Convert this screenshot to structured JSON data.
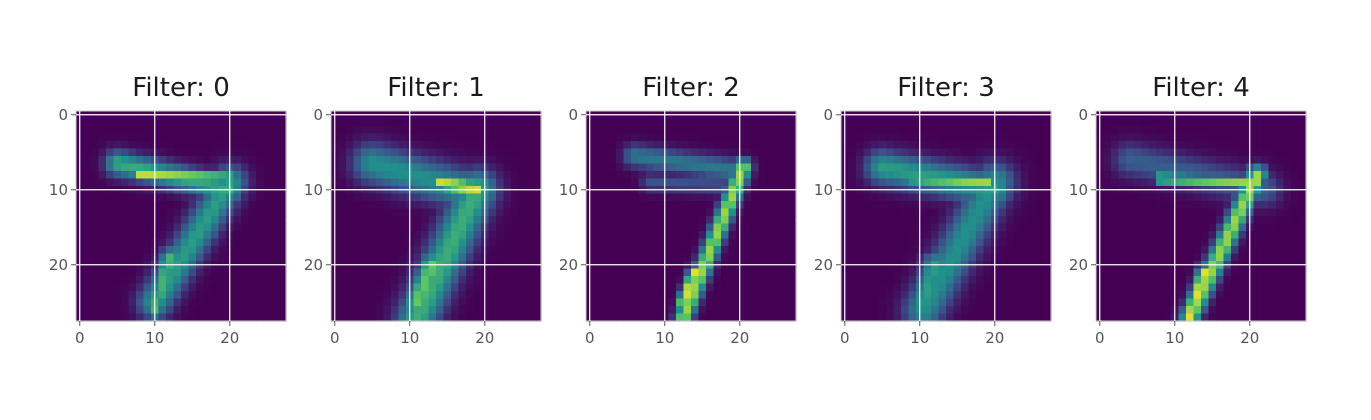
{
  "chart_data": {
    "type": "heatmap",
    "colormap": "viridis",
    "colors": [
      "#440154",
      "#3b528b",
      "#21918c",
      "#5ec962",
      "#fde725"
    ],
    "grid": true,
    "image_size": [
      28,
      28
    ],
    "panels": [
      {
        "title": "Filter: 0",
        "xticks": [
          "0",
          "10",
          "20"
        ],
        "yticks": [
          "0",
          "10",
          "20"
        ],
        "xlim": [
          0,
          27
        ],
        "ylim": [
          27,
          0
        ],
        "strokes": [
          {
            "x1": 5,
            "y1": 6.5,
            "x2": 20,
            "y2": 10,
            "intensity": 0.6,
            "thickness": 1.2
          },
          {
            "x1": 8,
            "y1": 8,
            "x2": 20,
            "y2": 8.5,
            "intensity": 0.9,
            "thickness": 0.5
          },
          {
            "x1": 20,
            "y1": 9,
            "x2": 10,
            "y2": 25,
            "intensity": 0.55,
            "thickness": 1.6
          },
          {
            "x1": 12,
            "y1": 19,
            "x2": 10,
            "y2": 26,
            "intensity": 0.65,
            "thickness": 0.9
          }
        ]
      },
      {
        "title": "Filter: 1",
        "xticks": [
          "0",
          "10",
          "20"
        ],
        "yticks": [
          "0",
          "10",
          "20"
        ],
        "xlim": [
          0,
          27
        ],
        "ylim": [
          27,
          0
        ],
        "strokes": [
          {
            "x1": 5,
            "y1": 6.5,
            "x2": 19,
            "y2": 10.5,
            "intensity": 0.5,
            "thickness": 1.9
          },
          {
            "x1": 14,
            "y1": 9,
            "x2": 19,
            "y2": 10,
            "intensity": 0.92,
            "thickness": 0.8
          },
          {
            "x1": 19,
            "y1": 10,
            "x2": 11,
            "y2": 27,
            "intensity": 0.62,
            "thickness": 1.9
          },
          {
            "x1": 13,
            "y1": 20,
            "x2": 11,
            "y2": 25,
            "intensity": 0.75,
            "thickness": 1.1
          }
        ]
      },
      {
        "title": "Filter: 2",
        "xticks": [
          "0",
          "10",
          "20"
        ],
        "yticks": [
          "0",
          "10",
          "20"
        ],
        "xlim": [
          0,
          27
        ],
        "ylim": [
          27,
          0
        ],
        "strokes": [
          {
            "x1": 6,
            "y1": 5.5,
            "x2": 20,
            "y2": 7.5,
            "intensity": 0.4,
            "thickness": 1.1
          },
          {
            "x1": 8,
            "y1": 9,
            "x2": 19,
            "y2": 9.5,
            "intensity": 0.25,
            "thickness": 0.9
          },
          {
            "x1": 20.5,
            "y1": 7,
            "x2": 12.5,
            "y2": 27,
            "intensity": 0.85,
            "thickness": 0.8
          },
          {
            "x1": 14,
            "y1": 21,
            "x2": 12.5,
            "y2": 25,
            "intensity": 0.95,
            "thickness": 0.6
          }
        ]
      },
      {
        "title": "Filter: 3",
        "xticks": [
          "0",
          "10",
          "20"
        ],
        "yticks": [
          "0",
          "10",
          "20"
        ],
        "xlim": [
          0,
          27
        ],
        "ylim": [
          27,
          0
        ],
        "strokes": [
          {
            "x1": 5,
            "y1": 7,
            "x2": 20,
            "y2": 10,
            "intensity": 0.55,
            "thickness": 1.6
          },
          {
            "x1": 9,
            "y1": 8.5,
            "x2": 19,
            "y2": 9,
            "intensity": 0.85,
            "thickness": 0.5
          },
          {
            "x1": 20,
            "y1": 9,
            "x2": 10.5,
            "y2": 26,
            "intensity": 0.5,
            "thickness": 1.9
          },
          {
            "x1": 12,
            "y1": 20,
            "x2": 10.5,
            "y2": 25,
            "intensity": 0.55,
            "thickness": 1.2
          }
        ]
      },
      {
        "title": "Filter: 4",
        "xticks": [
          "0",
          "10",
          "20"
        ],
        "yticks": [
          "0",
          "10",
          "20"
        ],
        "xlim": [
          0,
          27
        ],
        "ylim": [
          27,
          0
        ],
        "strokes": [
          {
            "x1": 4,
            "y1": 6,
            "x2": 22,
            "y2": 10,
            "intensity": 0.3,
            "thickness": 1.6
          },
          {
            "x1": 8,
            "y1": 8.5,
            "x2": 21,
            "y2": 9,
            "intensity": 0.85,
            "thickness": 0.5
          },
          {
            "x1": 21,
            "y1": 8,
            "x2": 12,
            "y2": 27,
            "intensity": 0.85,
            "thickness": 0.9
          },
          {
            "x1": 14,
            "y1": 21,
            "x2": 12,
            "y2": 27,
            "intensity": 0.95,
            "thickness": 0.7
          }
        ]
      }
    ]
  }
}
